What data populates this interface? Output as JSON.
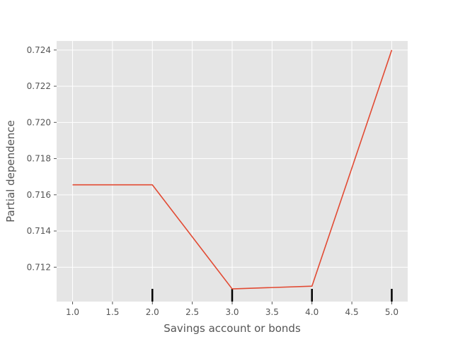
{
  "chart_data": {
    "type": "line",
    "title": "",
    "xlabel": "Savings account or bonds",
    "ylabel": "Partial dependence",
    "xlim": [
      0.8,
      5.2
    ],
    "ylim": [
      0.7101,
      0.7245
    ],
    "xticks": [
      1.0,
      1.5,
      2.0,
      2.5,
      3.0,
      3.5,
      4.0,
      4.5,
      5.0
    ],
    "xtick_labels": [
      "1.0",
      "1.5",
      "2.0",
      "2.5",
      "3.0",
      "3.5",
      "4.0",
      "4.5",
      "5.0"
    ],
    "yticks": [
      0.712,
      0.714,
      0.716,
      0.718,
      0.72,
      0.722,
      0.724
    ],
    "ytick_labels": [
      "0.712",
      "0.714",
      "0.716",
      "0.718",
      "0.720",
      "0.722",
      "0.724"
    ],
    "grid": true,
    "series": [
      {
        "x": [
          1.0,
          2.0,
          3.0,
          4.0,
          5.0
        ],
        "y": [
          0.71655,
          0.71655,
          0.7108,
          0.71095,
          0.724
        ],
        "color": "#E24A33"
      }
    ],
    "rug": {
      "x": [
        2.0,
        3.0,
        4.0,
        5.0
      ],
      "color": "#000000"
    },
    "colors": {
      "plot_background": "#E5E5E5",
      "grid": "#FFFFFF",
      "text": "#555555"
    }
  }
}
